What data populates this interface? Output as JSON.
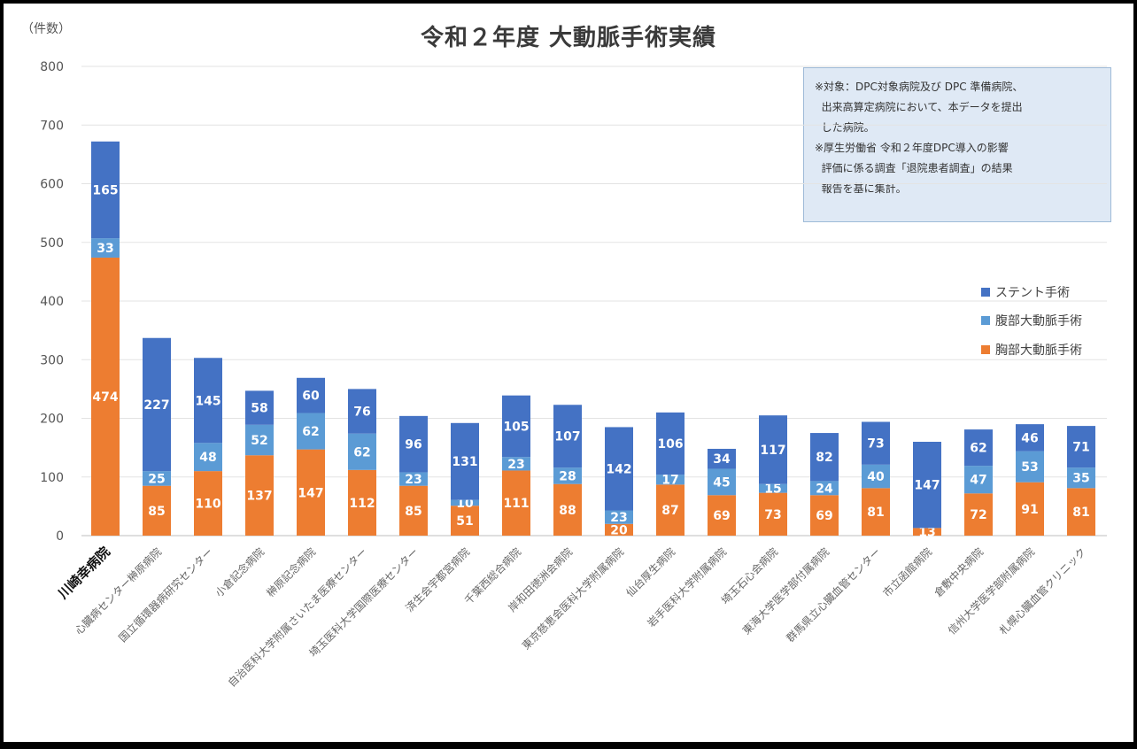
{
  "chart_data": {
    "type": "bar",
    "stacked": true,
    "title": "令和２年度 大動脈手術実績",
    "ylabel": "（件数）",
    "ylim": [
      0,
      800
    ],
    "yticks": [
      0,
      100,
      200,
      300,
      400,
      500,
      600,
      700,
      800
    ],
    "grid": true,
    "legend_position": "right",
    "categories": [
      "川崎幸病院",
      "心臓病センター榊原病院",
      "国立循環器病研究センター",
      "小倉記念病院",
      "榊原記念病院",
      "自治医科大学附属さいたま医療センター",
      "埼玉医科大学国際医療センター",
      "済生会宇都宮病院",
      "千葉西総合病院",
      "岸和田徳洲会病院",
      "東京慈恵会医科大学附属病院",
      "仙台厚生病院",
      "岩手医科大学附属病院",
      "埼玉石心会病院",
      "東海大学医学部付属病院",
      "群馬県立心臓血管センター",
      "市立函館病院",
      "倉敷中央病院",
      "信州大学医学部附属病院",
      "札幌心臓血管クリニック"
    ],
    "series": [
      {
        "name": "胸部大動脈手術",
        "color": "#ed7d31",
        "values": [
          474,
          85,
          110,
          137,
          147,
          112,
          85,
          51,
          111,
          88,
          20,
          87,
          69,
          73,
          69,
          81,
          13,
          72,
          91,
          81
        ]
      },
      {
        "name": "腹部大動脈手術",
        "color": "#5b9bd5",
        "values": [
          33,
          25,
          48,
          52,
          62,
          62,
          23,
          10,
          23,
          28,
          23,
          17,
          45,
          15,
          24,
          40,
          0,
          47,
          53,
          35
        ]
      },
      {
        "name": "ステント手術",
        "color": "#4472c4",
        "values": [
          165,
          227,
          145,
          58,
          60,
          76,
          96,
          131,
          105,
          107,
          142,
          106,
          34,
          117,
          82,
          73,
          147,
          62,
          46,
          71
        ]
      }
    ],
    "legend": [
      "ステント手術",
      "腹部大動脈手術",
      "胸部大動脈手術"
    ],
    "highlight_category": "川崎幸病院"
  },
  "note": {
    "lines": [
      "※対象：DPC対象病院及び DPC 準備病院、",
      "  出来高算定病院において、本データを提出",
      "  した病院。",
      "※厚生労働省 令和２年度DPC導入の影響",
      "  評価に係る調査「退院患者調査」の結果",
      "  報告を基に集計。"
    ]
  }
}
